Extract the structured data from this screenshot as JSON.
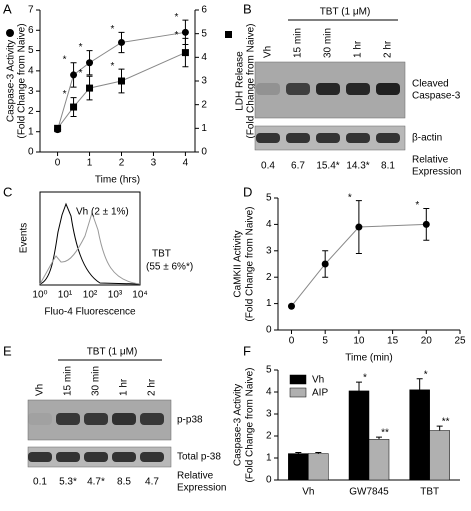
{
  "panel_labels": [
    "A",
    "B",
    "C",
    "D",
    "E",
    "F"
  ],
  "chart_data": [
    {
      "type": "line",
      "x": [
        0,
        0.5,
        1,
        2,
        4
      ],
      "xlim": [
        -0.55,
        4.3
      ],
      "xticks": [
        0,
        1,
        2,
        3,
        4
      ],
      "ylim": [
        0,
        7
      ],
      "yticks": [
        0,
        1,
        2,
        3,
        4,
        5,
        6,
        7
      ],
      "y2lim": [
        0,
        6
      ],
      "y2ticks": [
        0,
        1,
        2,
        3,
        4,
        5,
        6
      ],
      "x_label": "Time (hrs)",
      "y_label": [
        "Caspase-3 Activity",
        "(Fold Change from Naive)"
      ],
      "y2_label": [
        "LDH Release",
        "(Fold Change from Naive)"
      ],
      "series": [
        {
          "marker": "circle",
          "color": "#000000",
          "values": [
            1.1,
            3.8,
            4.4,
            5.4,
            5.9
          ],
          "errors": [
            0.1,
            0.6,
            0.6,
            0.5,
            0.6
          ],
          "significance": [
            null,
            "*",
            "*",
            "*",
            "*"
          ]
        },
        {
          "marker": "square",
          "color": "#000000",
          "axis": "y2",
          "values": [
            1.0,
            1.9,
            2.7,
            3.0,
            4.2
          ],
          "errors": [
            0.1,
            0.4,
            0.5,
            0.5,
            0.6
          ],
          "significance": [
            null,
            "*",
            "*",
            "*",
            "*"
          ]
        }
      ]
    },
    {
      "type": "line",
      "x": [
        0,
        5,
        10,
        20
      ],
      "xlim": [
        -2,
        25
      ],
      "xticks": [
        0,
        5,
        10,
        15,
        20,
        25
      ],
      "ylim": [
        0,
        5
      ],
      "yticks": [
        0,
        1,
        2,
        3,
        4,
        5
      ],
      "x_label": "Time (min)",
      "y_label": [
        "CaMKII Activity",
        "(Fold Change from Naive)"
      ],
      "series": [
        {
          "marker": "circle",
          "color": "#000000",
          "values": [
            0.9,
            2.5,
            3.9,
            4.0
          ],
          "errors": [
            0.05,
            0.5,
            1.0,
            0.6
          ],
          "significance": [
            null,
            null,
            "*",
            "*"
          ]
        }
      ]
    },
    {
      "type": "bar",
      "categories": [
        "Vh",
        "GW7845",
        "TBT"
      ],
      "ylim": [
        0,
        5
      ],
      "yticks": [
        0,
        1,
        2,
        3,
        4,
        5
      ],
      "y_label": [
        "Caspase-3 Activity",
        "(Fold Change from Naive)"
      ],
      "legend": "top-left",
      "series": [
        {
          "name": "Vh",
          "color": "#000000",
          "values": [
            1.2,
            4.05,
            4.1
          ],
          "errors": [
            0.05,
            0.4,
            0.5
          ],
          "significance": [
            null,
            "*",
            "*"
          ]
        },
        {
          "name": "AIP",
          "color": "#b0b0b0",
          "values": [
            1.2,
            1.85,
            2.25
          ],
          "errors": [
            0.05,
            0.1,
            0.2
          ],
          "significance": [
            null,
            "**",
            "**"
          ]
        }
      ]
    }
  ],
  "blots": [
    {
      "treatment": "TBT (1 μM)",
      "lanes": [
        "Vh",
        "15 min",
        "30 min",
        "1 hr",
        "2 hr"
      ],
      "rows": [
        [
          "Cleaved",
          "Caspase-3"
        ],
        [
          "β-actin"
        ]
      ],
      "values": [
        "0.4",
        "6.7",
        "15.4*",
        "14.3*",
        "8.1"
      ],
      "values_label": [
        "Relative",
        "Expression"
      ]
    },
    {
      "treatment": "TBT (1 μM)",
      "lanes": [
        "Vh",
        "15 min",
        "30 min",
        "1 hr",
        "2 hr"
      ],
      "rows": [
        [
          "p-p38"
        ],
        [
          "Total p-38"
        ]
      ],
      "values": [
        "0.1",
        "5.3*",
        "4.7*",
        "8.5",
        "4.7"
      ],
      "values_label": [
        "Relative",
        "Expression"
      ]
    }
  ],
  "flow": {
    "y_label": "Events",
    "x_label": "Fluo-4 Fluorescence",
    "xtick_labels": [
      "10⁰",
      "10¹",
      "10²",
      "10³",
      "10⁴"
    ],
    "curves": [
      [
        "Vh (2 ± 1%)"
      ],
      [
        "TBT",
        "(55 ± 6%*)"
      ]
    ]
  }
}
